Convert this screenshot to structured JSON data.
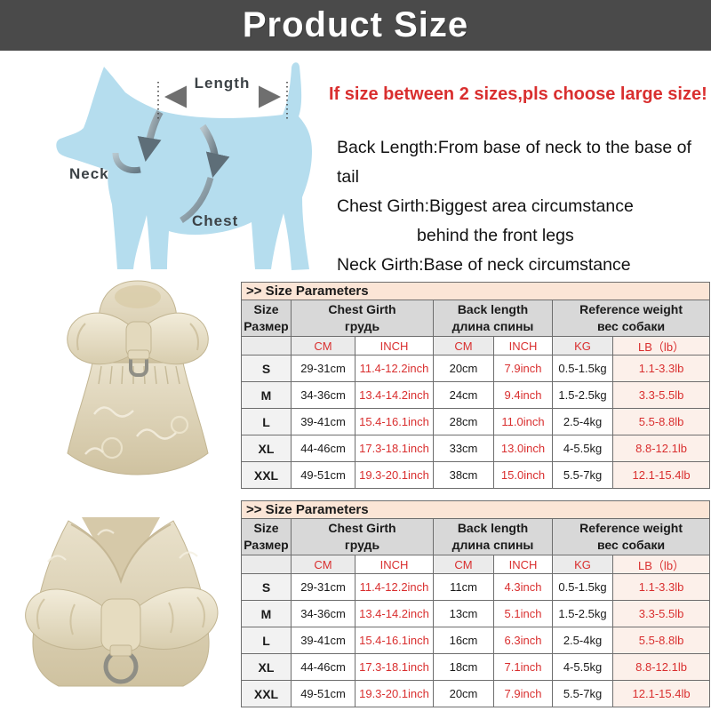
{
  "banner": {
    "title": "Product Size"
  },
  "diagram": {
    "length_label": "Length",
    "neck_label": "Neck",
    "chest_label": "Chest"
  },
  "notice": "If size between 2 sizes,pls choose large size!",
  "notes": {
    "line1": "Back Length:From base of neck to the base of tail",
    "line2": "Chest Girth:Biggest area circumstance",
    "line3": "behind the front legs",
    "line4": "Neck Girth:Base of neck circumstance"
  },
  "table_header": {
    "title": ">> Size Parameters",
    "size_en": "Size",
    "size_ru": "Размер",
    "chest_en": "Chest Girth",
    "chest_ru": "грудь",
    "back_en": "Back length",
    "back_ru": "длина спины",
    "weight_en": "Reference weight",
    "weight_ru": "вес собаки",
    "units": [
      "CM",
      "INCH",
      "CM",
      "INCH",
      "KG",
      "LB（lb）"
    ]
  },
  "tables": [
    {
      "product": "gold-brocade-dog-dress-with-bow",
      "rows": [
        [
          "S",
          "29-31cm",
          "11.4-12.2inch",
          "20cm",
          "7.9inch",
          "0.5-1.5kg",
          "1.1-3.3lb"
        ],
        [
          "M",
          "34-36cm",
          "13.4-14.2inch",
          "24cm",
          "9.4inch",
          "1.5-2.5kg",
          "3.3-5.5lb"
        ],
        [
          "L",
          "39-41cm",
          "15.4-16.1inch",
          "28cm",
          "11.0inch",
          "2.5-4kg",
          "5.5-8.8lb"
        ],
        [
          "XL",
          "44-46cm",
          "17.3-18.1inch",
          "33cm",
          "13.0inch",
          "4-5.5kg",
          "8.8-12.1lb"
        ],
        [
          "XXL",
          "49-51cm",
          "19.3-20.1inch",
          "38cm",
          "15.0inch",
          "5.5-7kg",
          "12.1-15.4lb"
        ]
      ]
    },
    {
      "product": "gold-brocade-dog-harness-vest-with-bow",
      "rows": [
        [
          "S",
          "29-31cm",
          "11.4-12.2inch",
          "11cm",
          "4.3inch",
          "0.5-1.5kg",
          "1.1-3.3lb"
        ],
        [
          "M",
          "34-36cm",
          "13.4-14.2inch",
          "13cm",
          "5.1inch",
          "1.5-2.5kg",
          "3.3-5.5lb"
        ],
        [
          "L",
          "39-41cm",
          "15.4-16.1inch",
          "16cm",
          "6.3inch",
          "2.5-4kg",
          "5.5-8.8lb"
        ],
        [
          "XL",
          "44-46cm",
          "17.3-18.1inch",
          "18cm",
          "7.1inch",
          "4-5.5kg",
          "8.8-12.1lb"
        ],
        [
          "XXL",
          "49-51cm",
          "19.3-20.1inch",
          "20cm",
          "7.9inch",
          "5.5-7kg",
          "12.1-15.4lb"
        ]
      ]
    }
  ],
  "colors": {
    "banner_bg": "#4a4a4a",
    "accent_red": "#d92f2f",
    "table_title_bg": "#fbe5d6",
    "header_bg": "#d8d8d8",
    "dog_blue": "#b5ddee",
    "brocade_gold": "#d8cdb2"
  }
}
